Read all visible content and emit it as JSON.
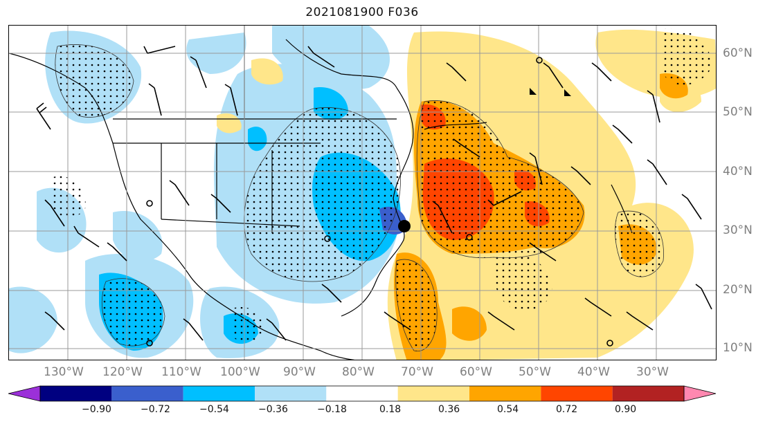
{
  "title": "2021081900 F036",
  "lat_labels": [
    "60°N",
    "50°N",
    "40°N",
    "30°N",
    "20°N",
    "10°N"
  ],
  "lon_labels": [
    "130°W",
    "120°W",
    "110°W",
    "100°W",
    "90°W",
    "80°W",
    "70°W",
    "60°W",
    "50°W",
    "40°W",
    "30°W"
  ],
  "colorbar": {
    "colors": [
      "#9b30d9",
      "#000080",
      "#3a5fcd",
      "#00bfff",
      "#b0e0f7",
      "#ffffff",
      "#ffe68a",
      "#ffa500",
      "#ff4500",
      "#b22222",
      "#ff88b0"
    ],
    "ticks": [
      "−0.90",
      "−0.72",
      "−0.54",
      "−0.36",
      "−0.18",
      "0.18",
      "0.36",
      "0.54",
      "0.72",
      "0.90"
    ]
  },
  "palette": {
    "negative_light": "#b0e0f7",
    "negative_mid": "#00bfff",
    "negative_strong": "#3a5fcd",
    "positive_light": "#ffe68a",
    "positive_mid": "#ffa500",
    "positive_strong": "#ff4500"
  }
}
